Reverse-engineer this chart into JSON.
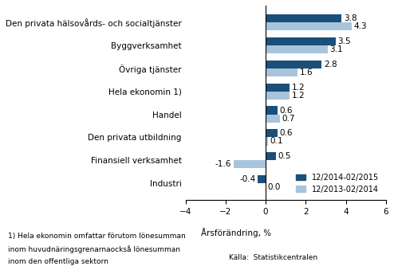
{
  "categories": [
    "Den privata hälsovårds- och socialtjänster",
    "Byggverksamhet",
    "Övriga tjänster",
    "Hela ekonomin 1)",
    "Handel",
    "Den privata utbildning",
    "Finansiell verksamhet",
    "Industri"
  ],
  "series1_label": "12/2014-02/2015",
  "series2_label": "12/2013-02/2014",
  "series1_values": [
    3.8,
    3.5,
    2.8,
    1.2,
    0.6,
    0.6,
    0.5,
    -0.4
  ],
  "series2_values": [
    4.3,
    3.1,
    1.6,
    1.2,
    0.7,
    0.1,
    -1.6,
    0.0
  ],
  "color1": "#1a4f7a",
  "color2": "#a8c4dc",
  "xlim": [
    -4,
    6
  ],
  "xticks": [
    -4,
    -2,
    0,
    2,
    4,
    6
  ],
  "xlabel": "Årsförändring, %",
  "footnote_line1": "1) Hela ekonomin omfattar förutom lönesumman",
  "footnote_line2": "inom huvudnäringsgrenarnaockså lönesumman",
  "footnote_line3": "inom den offentliga sektorn",
  "xlabel_label": "Årsförändring, %",
  "source": "Källa:  Statistikcentralen",
  "bar_height": 0.35,
  "label_fontsize": 7.5,
  "tick_fontsize": 7.5,
  "annotation_fontsize": 7.5
}
